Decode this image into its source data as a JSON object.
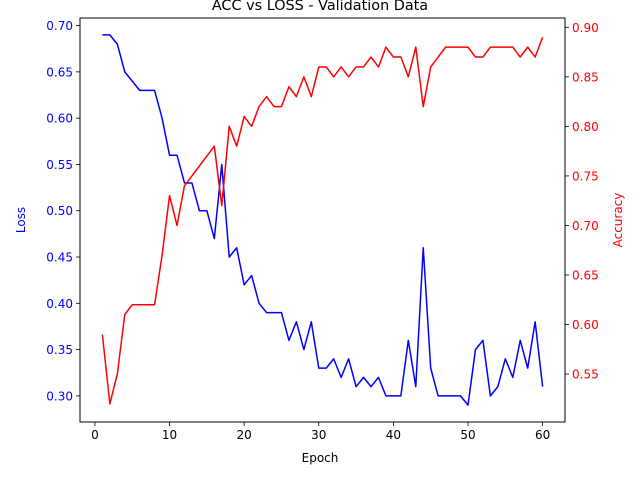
{
  "chart_data": {
    "type": "line",
    "title": "ACC vs LOSS - Validation Data",
    "xlabel": "Epoch",
    "ylabel_left": "Loss",
    "ylabel_right": "Accuracy",
    "xlim": [
      -2,
      63
    ],
    "ylim_left": [
      0.2718,
      0.7082
    ],
    "ylim_right": [
      0.5016,
      0.9094
    ],
    "x_ticks": [
      0,
      10,
      20,
      30,
      40,
      50,
      60
    ],
    "y_ticks_left": [
      0.3,
      0.35,
      0.4,
      0.45,
      0.5,
      0.55,
      0.6,
      0.65,
      0.7
    ],
    "y_ticks_right": [
      0.55,
      0.6,
      0.65,
      0.7,
      0.75,
      0.8,
      0.85,
      0.9
    ],
    "x_tick_labels": [
      "0",
      "10",
      "20",
      "30",
      "40",
      "50",
      "60"
    ],
    "y_tick_labels_left": [
      "0.30",
      "0.35",
      "0.40",
      "0.45",
      "0.50",
      "0.55",
      "0.60",
      "0.65",
      "0.70"
    ],
    "y_tick_labels_right": [
      "0.55",
      "0.60",
      "0.65",
      "0.70",
      "0.75",
      "0.80",
      "0.85",
      "0.90"
    ],
    "legend": "none",
    "grid": false,
    "x": [
      1,
      2,
      3,
      4,
      5,
      6,
      7,
      8,
      9,
      10,
      11,
      12,
      13,
      14,
      15,
      16,
      17,
      18,
      19,
      20,
      21,
      22,
      23,
      24,
      25,
      26,
      27,
      28,
      29,
      30,
      31,
      32,
      33,
      34,
      35,
      36,
      37,
      38,
      39,
      40,
      41,
      42,
      43,
      44,
      45,
      46,
      47,
      48,
      49,
      50,
      51,
      52,
      53,
      54,
      55,
      56,
      57,
      58,
      59,
      60
    ],
    "series": [
      {
        "axis": "left",
        "color": "#0000ff",
        "values": [
          0.69,
          0.69,
          0.68,
          0.65,
          0.64,
          0.63,
          0.63,
          0.63,
          0.6,
          0.56,
          0.56,
          0.53,
          0.53,
          0.5,
          0.5,
          0.47,
          0.55,
          0.45,
          0.46,
          0.42,
          0.43,
          0.4,
          0.39,
          0.39,
          0.39,
          0.36,
          0.38,
          0.35,
          0.38,
          0.33,
          0.33,
          0.34,
          0.32,
          0.34,
          0.31,
          0.32,
          0.31,
          0.32,
          0.3,
          0.3,
          0.3,
          0.36,
          0.31,
          0.46,
          0.33,
          0.3,
          0.3,
          0.3,
          0.3,
          0.29,
          0.35,
          0.36,
          0.3,
          0.31,
          0.34,
          0.32,
          0.36,
          0.33,
          0.38,
          0.31
        ]
      },
      {
        "axis": "right",
        "color": "#ff0000",
        "values": [
          0.59,
          0.52,
          0.55,
          0.61,
          0.62,
          0.62,
          0.62,
          0.62,
          0.67,
          0.73,
          0.7,
          0.74,
          0.75,
          0.76,
          0.77,
          0.78,
          0.72,
          0.8,
          0.78,
          0.81,
          0.8,
          0.82,
          0.83,
          0.82,
          0.82,
          0.84,
          0.83,
          0.85,
          0.83,
          0.86,
          0.86,
          0.85,
          0.86,
          0.85,
          0.86,
          0.86,
          0.87,
          0.86,
          0.88,
          0.87,
          0.87,
          0.85,
          0.88,
          0.82,
          0.86,
          0.87,
          0.88,
          0.88,
          0.88,
          0.88,
          0.87,
          0.87,
          0.88,
          0.88,
          0.88,
          0.88,
          0.87,
          0.88,
          0.87,
          0.89
        ]
      }
    ]
  },
  "colors": {
    "loss": "#0000ff",
    "accuracy": "#ff0000",
    "axis": "#000000"
  }
}
